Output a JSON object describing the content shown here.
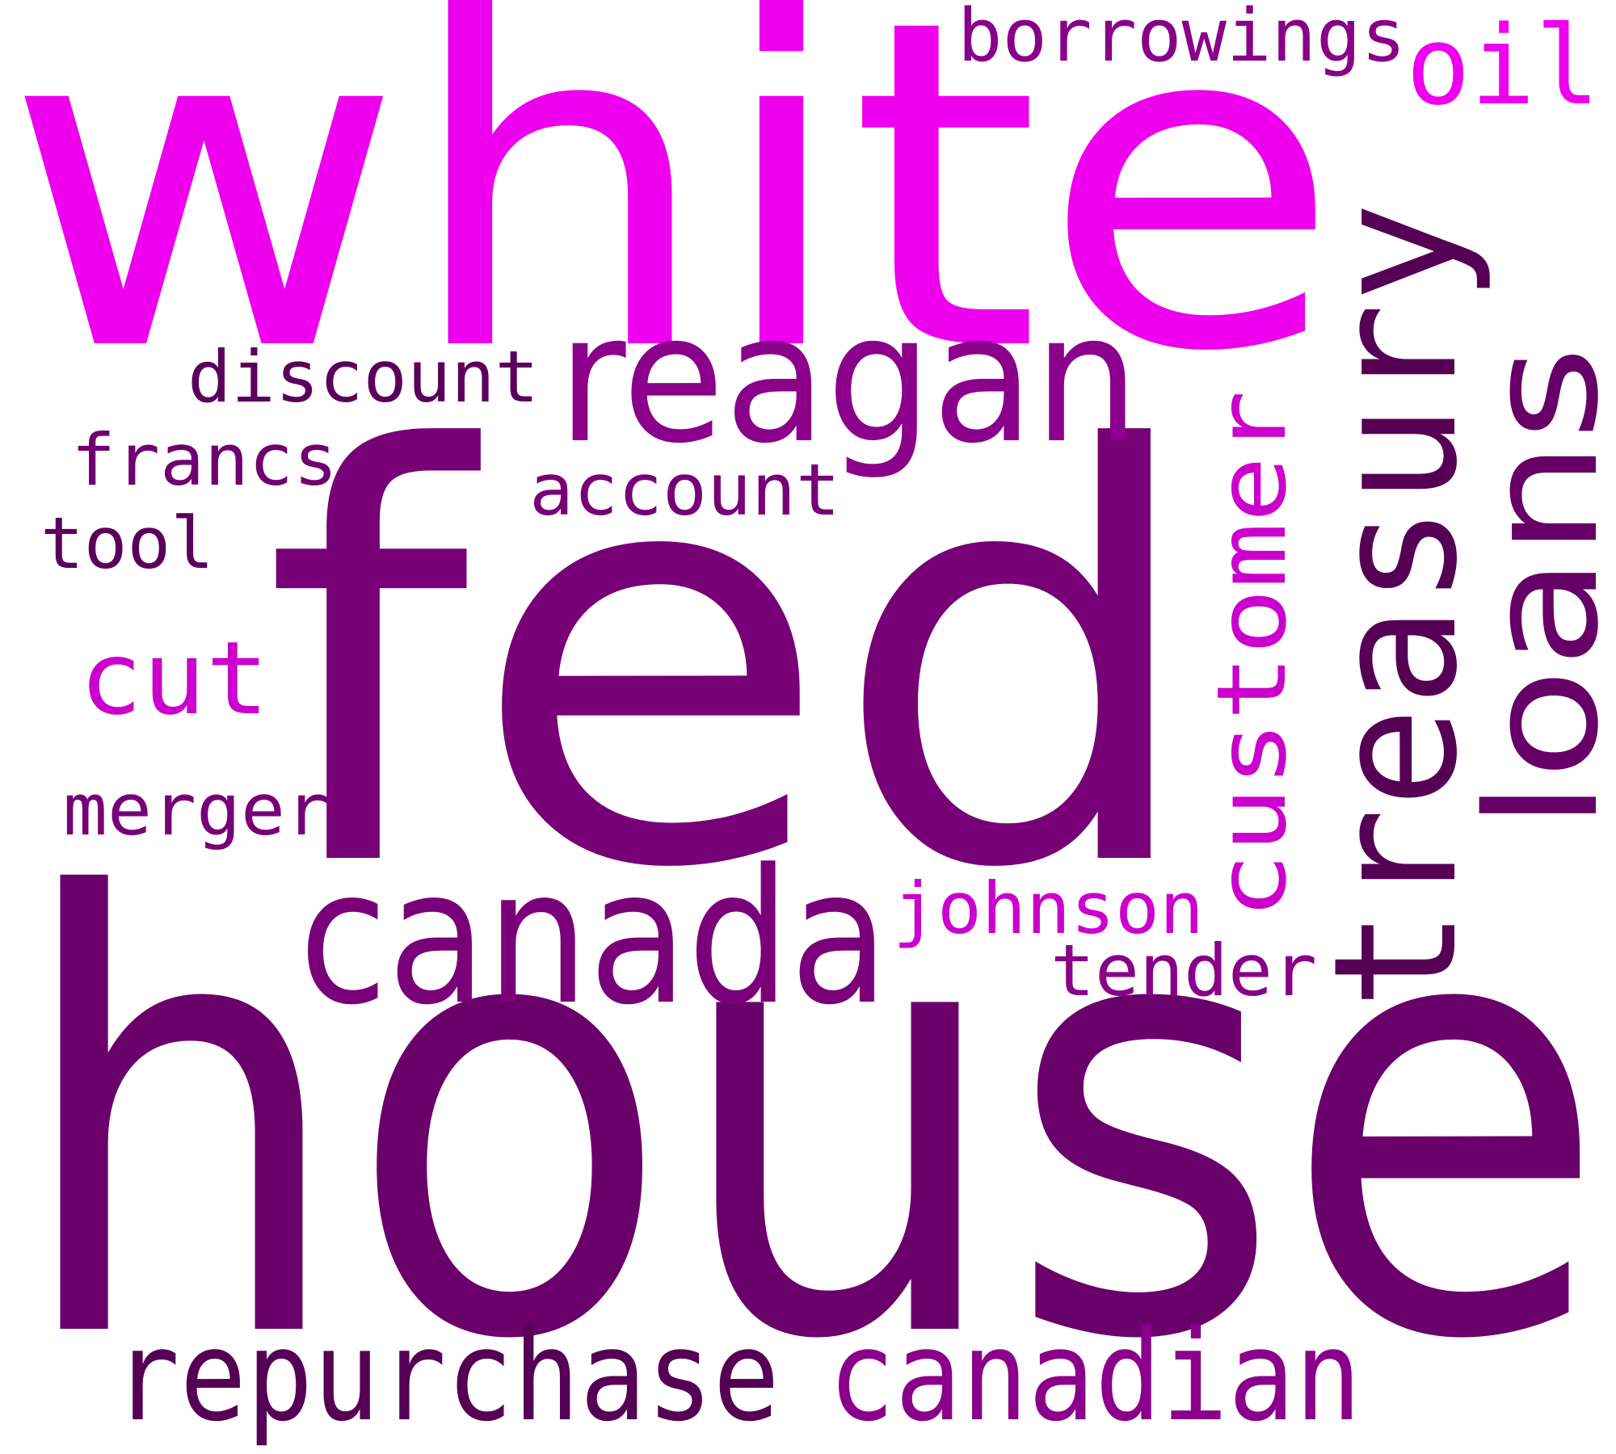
{
  "palette": {
    "magenta": "#ee00ee",
    "orchid": "#cc00cc",
    "purple": "#8b008b",
    "dark_purple": "#770077",
    "plum": "#6a006a",
    "deep_plum": "#550055"
  },
  "words": [
    {
      "id": "white",
      "text": "white",
      "color": "#ee00ee"
    },
    {
      "id": "fed",
      "text": "fed",
      "color": "#770077"
    },
    {
      "id": "house",
      "text": "house",
      "color": "#6a006a"
    },
    {
      "id": "reagan",
      "text": "reagan",
      "color": "#8b008b"
    },
    {
      "id": "treasury",
      "text": "treasury",
      "color": "#550055"
    },
    {
      "id": "loans",
      "text": "loans",
      "color": "#660066"
    },
    {
      "id": "customer",
      "text": "customer",
      "color": "#cc00cc"
    },
    {
      "id": "canada",
      "text": "canada",
      "color": "#7a007a"
    },
    {
      "id": "repurchase",
      "text": "repurchase",
      "color": "#550055"
    },
    {
      "id": "canadian",
      "text": "canadian",
      "color": "#8b008b"
    },
    {
      "id": "borrowings",
      "text": "borrowings",
      "color": "#880088"
    },
    {
      "id": "oil",
      "text": "oil",
      "color": "#ee00ee"
    },
    {
      "id": "discount",
      "text": "discount",
      "color": "#5a005a"
    },
    {
      "id": "francs",
      "text": "francs",
      "color": "#6f006f"
    },
    {
      "id": "account",
      "text": "account",
      "color": "#770077"
    },
    {
      "id": "tool",
      "text": "tool",
      "color": "#5a005a"
    },
    {
      "id": "cut",
      "text": "cut",
      "color": "#cc00cc"
    },
    {
      "id": "merger",
      "text": "merger",
      "color": "#770077"
    },
    {
      "id": "johnson",
      "text": "johnson",
      "color": "#cc00cc"
    },
    {
      "id": "tender",
      "text": "tender",
      "color": "#880088"
    }
  ]
}
